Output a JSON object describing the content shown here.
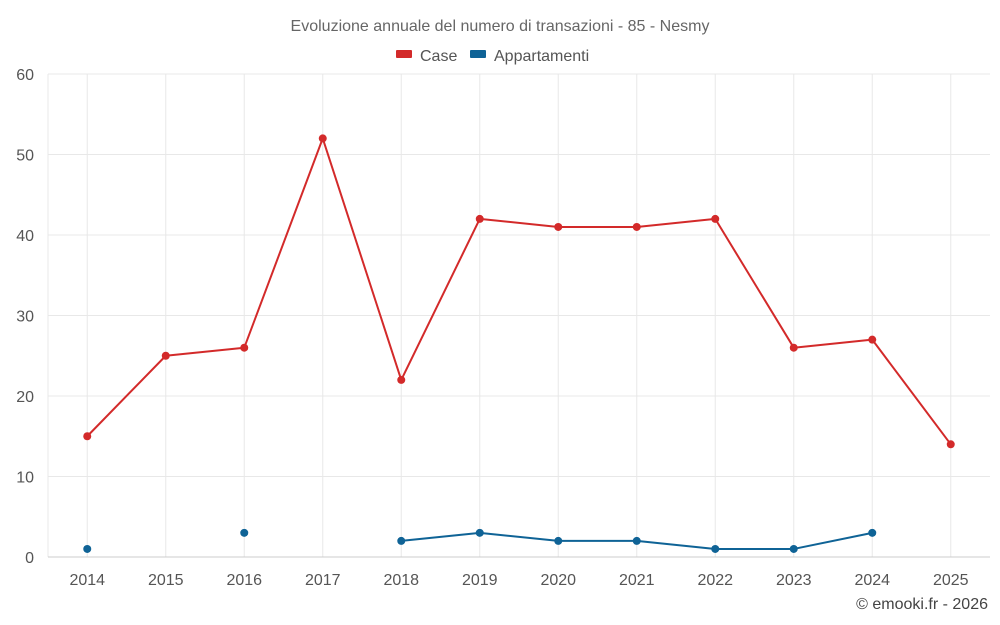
{
  "chart_data": {
    "type": "line",
    "title": "Evoluzione annuale del numero di transazioni - 85 - Nesmy",
    "categories": [
      "2014",
      "2015",
      "2016",
      "2017",
      "2018",
      "2019",
      "2020",
      "2021",
      "2022",
      "2023",
      "2024",
      "2025"
    ],
    "series": [
      {
        "name": "Case",
        "color": "#d32a2a",
        "values": [
          15,
          25,
          26,
          52,
          22,
          42,
          41,
          41,
          42,
          26,
          27,
          14
        ]
      },
      {
        "name": "Appartamenti",
        "color": "#0f6396",
        "values": [
          1,
          null,
          3,
          null,
          2,
          3,
          2,
          2,
          1,
          1,
          3,
          null
        ]
      }
    ],
    "ylim": [
      0,
      60
    ],
    "yticks": [
      0,
      10,
      20,
      30,
      40,
      50,
      60
    ],
    "grid": true,
    "legend_position": "top-center",
    "xlabel": "",
    "ylabel": ""
  },
  "credit": "© emooki.fr - 2026"
}
